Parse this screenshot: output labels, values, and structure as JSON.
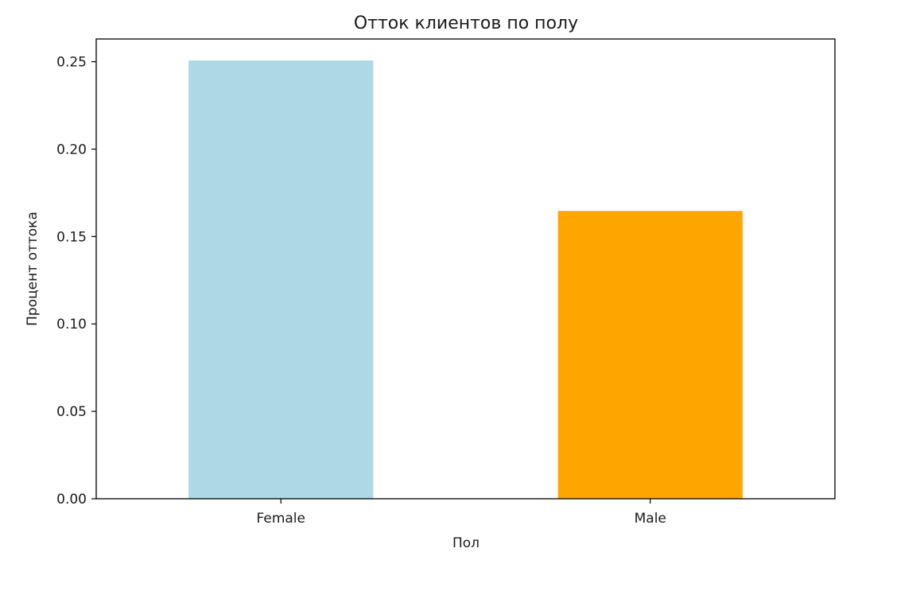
{
  "chart_data": {
    "type": "bar",
    "title": "Отток клиентов по полу",
    "xlabel": "Пол",
    "ylabel": "Процент оттока",
    "categories": [
      "Female",
      "Male"
    ],
    "values": [
      0.2507,
      0.1646
    ],
    "colors": [
      "#add8e6",
      "#ffa500"
    ],
    "ylim": [
      0,
      0.263
    ],
    "yticks": [
      0.0,
      0.05,
      0.1,
      0.15,
      0.2,
      0.25
    ],
    "ytick_labels": [
      "0.00",
      "0.05",
      "0.10",
      "0.15",
      "0.20",
      "0.25"
    ],
    "grid": false,
    "legend": false
  }
}
